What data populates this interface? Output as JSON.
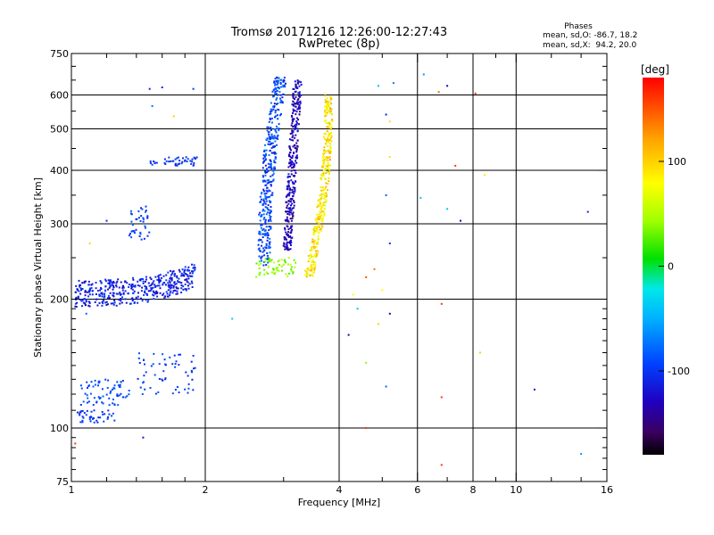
{
  "chart_data": {
    "type": "scatter",
    "title": "Tromsø 20171216 12:26:00-12:27:43",
    "subtitle": "RwPretec (8p)",
    "xlabel": "Frequency [MHz]",
    "ylabel": "Stationary phase Virtual Height [km]",
    "xscale": "log",
    "yscale": "log",
    "xlim": [
      1,
      16
    ],
    "ylim": [
      75,
      750
    ],
    "x_ticks": [
      1,
      2,
      4,
      6,
      8,
      10,
      16
    ],
    "y_ticks": [
      75,
      100,
      200,
      300,
      400,
      500,
      600,
      750
    ],
    "grid": true,
    "annotation": {
      "title": "Phases",
      "line1": "mean, sd,O: -86.7, 18.2",
      "line2": "mean, sd,X:  94.2, 20.0"
    },
    "colorbar": {
      "label": "[deg]",
      "min": -180,
      "max": 180,
      "ticks": [
        100,
        0,
        -100
      ]
    },
    "clusters": [
      {
        "x": [
          1.02,
          1.9
        ],
        "y": [
          190,
          235
        ],
        "phase": [
          -130,
          -90
        ],
        "n": 420,
        "shape": "fband"
      },
      {
        "x": [
          1.02,
          1.25
        ],
        "y": [
          103,
          110
        ],
        "phase": [
          -110,
          -90
        ],
        "n": 40
      },
      {
        "x": [
          1.05,
          1.35
        ],
        "y": [
          113,
          130
        ],
        "phase": [
          -100,
          -80
        ],
        "n": 70
      },
      {
        "x": [
          1.4,
          1.9
        ],
        "y": [
          120,
          150
        ],
        "phase": [
          -110,
          -80
        ],
        "n": 60
      },
      {
        "x": [
          1.5,
          1.95
        ],
        "y": [
          410,
          430
        ],
        "phase": [
          -110,
          -90
        ],
        "n": 45
      },
      {
        "x": [
          1.35,
          1.5
        ],
        "y": [
          275,
          330
        ],
        "phase": [
          -110,
          -80
        ],
        "n": 40
      },
      {
        "x": [
          2.6,
          3.05
        ],
        "y": [
          240,
          660
        ],
        "phase": [
          -115,
          -70
        ],
        "n": 380,
        "shape": "leftcurve"
      },
      {
        "x": [
          2.95,
          3.3
        ],
        "y": [
          260,
          650
        ],
        "phase": [
          -150,
          -110
        ],
        "n": 330,
        "shape": "midcurve"
      },
      {
        "x": [
          3.3,
          3.85
        ],
        "y": [
          225,
          600
        ],
        "phase": [
          60,
          120
        ],
        "n": 350,
        "shape": "rightcurve"
      },
      {
        "x": [
          2.6,
          3.2
        ],
        "y": [
          225,
          250
        ],
        "phase": [
          20,
          60
        ],
        "n": 60
      }
    ],
    "outliers": [
      {
        "x": 1.5,
        "y": 620,
        "phase": -110
      },
      {
        "x": 1.6,
        "y": 625,
        "phase": -110
      },
      {
        "x": 1.88,
        "y": 620,
        "phase": -100
      },
      {
        "x": 1.52,
        "y": 565,
        "phase": -70
      },
      {
        "x": 1.7,
        "y": 535,
        "phase": 100
      },
      {
        "x": 1.2,
        "y": 305,
        "phase": -110
      },
      {
        "x": 4.9,
        "y": 630,
        "phase": -40
      },
      {
        "x": 5.3,
        "y": 640,
        "phase": -70
      },
      {
        "x": 6.2,
        "y": 670,
        "phase": -60
      },
      {
        "x": 6.7,
        "y": 610,
        "phase": 140
      },
      {
        "x": 7.0,
        "y": 630,
        "phase": -130
      },
      {
        "x": 8.1,
        "y": 605,
        "phase": 160
      },
      {
        "x": 5.1,
        "y": 540,
        "phase": -110
      },
      {
        "x": 5.2,
        "y": 520,
        "phase": 90
      },
      {
        "x": 5.2,
        "y": 430,
        "phase": 90
      },
      {
        "x": 7.3,
        "y": 410,
        "phase": 160
      },
      {
        "x": 8.5,
        "y": 390,
        "phase": 90
      },
      {
        "x": 5.1,
        "y": 350,
        "phase": -80
      },
      {
        "x": 6.1,
        "y": 345,
        "phase": -40
      },
      {
        "x": 7.0,
        "y": 325,
        "phase": -40
      },
      {
        "x": 7.5,
        "y": 305,
        "phase": -130
      },
      {
        "x": 14.5,
        "y": 320,
        "phase": -110
      },
      {
        "x": 5.2,
        "y": 270,
        "phase": -100
      },
      {
        "x": 4.8,
        "y": 235,
        "phase": 140
      },
      {
        "x": 4.6,
        "y": 225,
        "phase": 150
      },
      {
        "x": 5.0,
        "y": 210,
        "phase": 80
      },
      {
        "x": 4.3,
        "y": 205,
        "phase": 80
      },
      {
        "x": 4.4,
        "y": 190,
        "phase": -40
      },
      {
        "x": 5.2,
        "y": 185,
        "phase": -140
      },
      {
        "x": 6.8,
        "y": 195,
        "phase": 160
      },
      {
        "x": 2.3,
        "y": 180,
        "phase": -40
      },
      {
        "x": 4.9,
        "y": 175,
        "phase": 100
      },
      {
        "x": 4.2,
        "y": 165,
        "phase": -140
      },
      {
        "x": 8.3,
        "y": 150,
        "phase": 100
      },
      {
        "x": 4.6,
        "y": 142,
        "phase": 40
      },
      {
        "x": 5.1,
        "y": 125,
        "phase": -80
      },
      {
        "x": 6.8,
        "y": 118,
        "phase": 160
      },
      {
        "x": 11.0,
        "y": 123,
        "phase": -120
      },
      {
        "x": 4.6,
        "y": 100,
        "phase": 160
      },
      {
        "x": 1.45,
        "y": 95,
        "phase": -120
      },
      {
        "x": 1.02,
        "y": 92,
        "phase": 160
      },
      {
        "x": 6.8,
        "y": 82,
        "phase": 160
      },
      {
        "x": 14.0,
        "y": 87,
        "phase": -60
      },
      {
        "x": 1.08,
        "y": 185,
        "phase": -80
      },
      {
        "x": 1.1,
        "y": 270,
        "phase": 100
      }
    ]
  }
}
